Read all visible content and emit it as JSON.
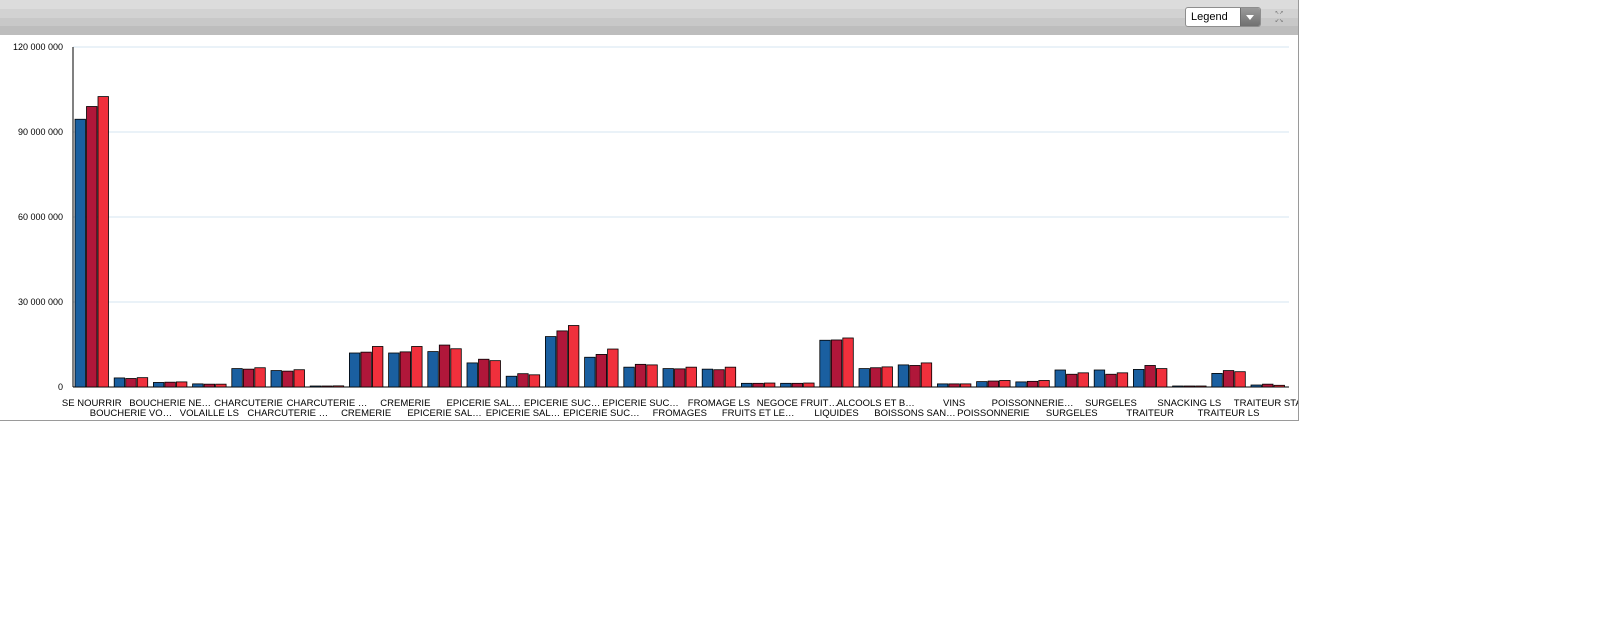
{
  "toolbar": {
    "legend_label": "Legend",
    "legend_dropdown_icon": "chevron-down-icon",
    "resize_icon": "resize-icon"
  },
  "colors": {
    "series": [
      "#1a5fa0",
      "#b0173a",
      "#f0303c"
    ],
    "grid": "#d6e4f0",
    "axis": "#000000"
  },
  "chart_data": {
    "type": "bar",
    "title": "",
    "xlabel": "",
    "ylabel": "",
    "ylim": [
      0,
      120000000
    ],
    "yticks": [
      0,
      30000000,
      60000000,
      90000000,
      120000000
    ],
    "ytick_labels": [
      "0",
      "30 000 000",
      "60 000 000",
      "90 000 000",
      "120 000 000"
    ],
    "grid": true,
    "legend": "hidden",
    "categories": [
      "SE NOURRIR",
      "BOUCHERIE VO…",
      "BOUCHERIE NE…",
      "VOLAILLE LS",
      "CHARCUTERIE",
      "CHARCUTERIE …",
      "CHARCUTERIE …",
      "CREMERIE",
      "CREMERIE",
      "EPICERIE SAL…",
      "EPICERIE SAL…",
      "EPICERIE SAL…",
      "EPICERIE SUC…",
      "EPICERIE SUC…",
      "EPICERIE SUC…",
      "FROMAGES",
      "FROMAGE LS",
      "FRUITS ET LE…",
      "NEGOCE FRUIT…",
      "LIQUIDES",
      "ALCOOLS ET B…",
      "BOISSONS SAN…",
      "VINS",
      "POISSONNERIE",
      "POISSONNERIE…",
      "SURGELES",
      "SURGELES",
      "TRAITEUR",
      "SNACKING LS",
      "TRAITEUR LS",
      "TRAITEUR STA"
    ],
    "series": [
      {
        "values": [
          94500000,
          3200000,
          1600000,
          1100000,
          6500000,
          5800000,
          300000,
          12000000,
          12000000,
          12500000,
          8500000,
          3800000,
          17800000,
          10500000,
          7000000,
          6500000,
          6300000,
          1300000,
          1300000,
          16500000,
          6500000,
          7800000,
          1100000,
          1900000,
          1800000,
          6000000,
          6000000,
          6200000,
          100000,
          4800000,
          700000
        ]
      },
      {
        "values": [
          99000000,
          3000000,
          1700000,
          1000000,
          6300000,
          5600000,
          300000,
          12300000,
          12400000,
          14800000,
          9800000,
          4700000,
          19800000,
          11500000,
          8000000,
          6400000,
          6100000,
          1300000,
          1300000,
          16600000,
          6800000,
          7600000,
          1100000,
          2100000,
          2000000,
          4500000,
          4500000,
          7600000,
          100000,
          5800000,
          1000000
        ]
      },
      {
        "values": [
          102500000,
          3300000,
          1800000,
          1000000,
          6800000,
          6100000,
          400000,
          14300000,
          14300000,
          13500000,
          9300000,
          4300000,
          21700000,
          13400000,
          7800000,
          7000000,
          7000000,
          1400000,
          1400000,
          17300000,
          7100000,
          8500000,
          1100000,
          2300000,
          2300000,
          5000000,
          5000000,
          6500000,
          100000,
          5400000,
          600000
        ]
      }
    ]
  }
}
